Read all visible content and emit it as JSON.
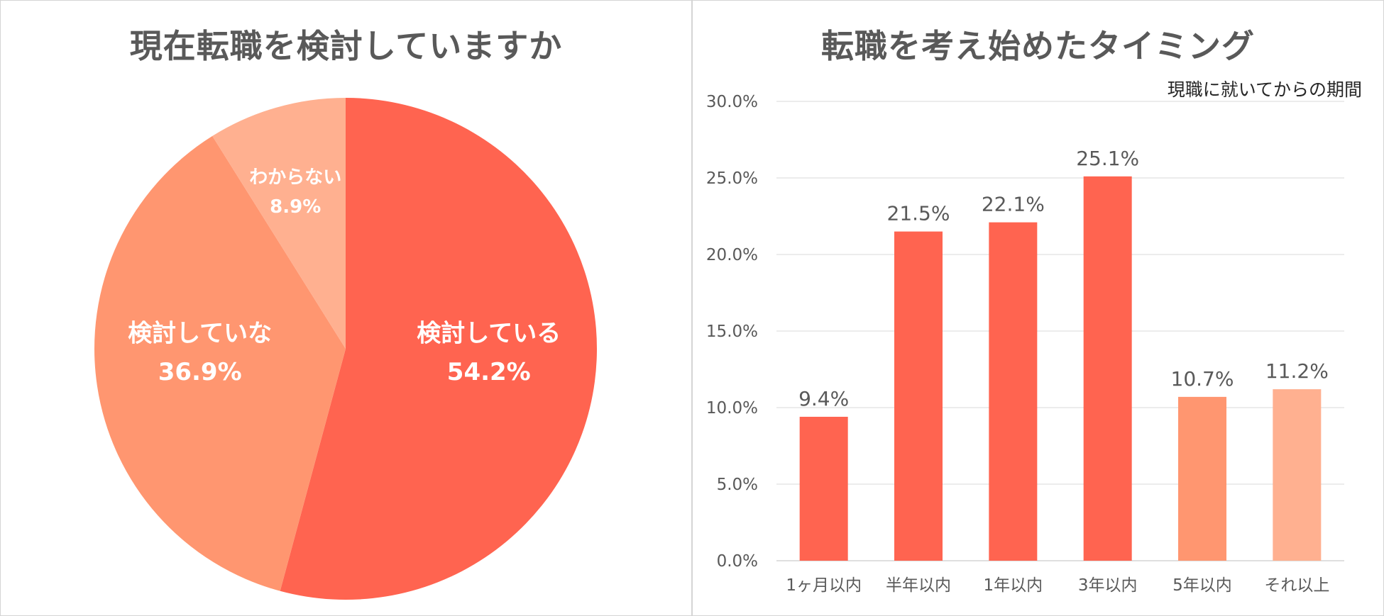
{
  "chart_data": [
    {
      "type": "pie",
      "title": "現在転職を検討していますか",
      "slices": [
        {
          "label": "検討している",
          "value": 54.2,
          "value_label": "54.2%",
          "color": "#FF6450"
        },
        {
          "label": "検討していな",
          "value": 36.9,
          "value_label": "36.9%",
          "color": "#FF9670"
        },
        {
          "label": "わからない",
          "value": 8.9,
          "value_label": "8.9%",
          "color": "#FFB090"
        }
      ]
    },
    {
      "type": "bar",
      "title": "転職を考え始めたタイミング",
      "subtitle": "現職に就いてからの期間",
      "categories": [
        "1ヶ月以内",
        "半年以内",
        "1年以内",
        "3年以内",
        "5年以内",
        "それ以上"
      ],
      "values": [
        9.4,
        21.5,
        22.1,
        25.1,
        10.7,
        11.2
      ],
      "value_labels": [
        "9.4%",
        "21.5%",
        "22.1%",
        "25.1%",
        "10.7%",
        "11.2%"
      ],
      "colors": [
        "#FF6450",
        "#FF6450",
        "#FF6450",
        "#FF6450",
        "#FF9670",
        "#FFB090"
      ],
      "ylim": [
        0,
        30
      ],
      "yticks": [
        "0.0%",
        "5.0%",
        "10.0%",
        "15.0%",
        "20.0%",
        "25.0%",
        "30.0%"
      ],
      "grid": true
    }
  ]
}
